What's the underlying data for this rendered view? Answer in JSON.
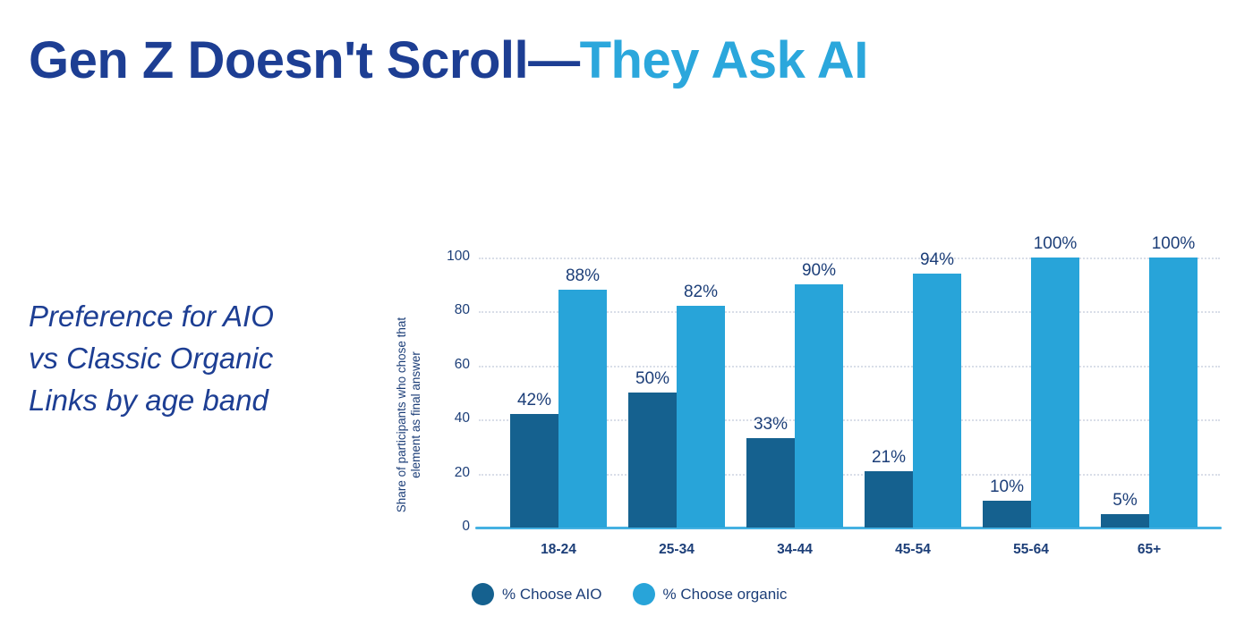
{
  "page": {
    "title": {
      "dark": "Gen Z Doesn't Scroll—",
      "accent": "They Ask AI"
    },
    "subtitle_lines": [
      "Preference for AIO",
      "vs Classic Organic",
      "Links by age band"
    ]
  },
  "colors": {
    "title_navy": "#1d3e93",
    "title_accent": "#2ba7dc",
    "chart_text": "#1c3e78",
    "aio_bar": "#15618f",
    "organic_bar": "#28a4d9",
    "axis_line": "#45b1e2",
    "gridline": "#d9dee8",
    "background": "#ffffff"
  },
  "chart_data": {
    "type": "bar",
    "title": "Preference for AIO vs Classic Organic Links by age band",
    "categories": [
      "18-24",
      "25-34",
      "34-44",
      "45-54",
      "55-64",
      "65+"
    ],
    "series": [
      {
        "name": "% Choose AIO",
        "color": "#15618f",
        "values": [
          42,
          50,
          33,
          21,
          10,
          5
        ]
      },
      {
        "name": "% Choose organic",
        "color": "#28a4d9",
        "values": [
          88,
          82,
          90,
          94,
          100,
          100
        ]
      }
    ],
    "value_labels": [
      [
        "42%",
        "50%",
        "33%",
        "21%",
        "10%",
        "5%"
      ],
      [
        "88%",
        "82%",
        "90%",
        "94%",
        "100%",
        "100%"
      ]
    ],
    "ylabel_lines": [
      "Share of participants who chose that",
      "element as final answer"
    ],
    "yticks": [
      0,
      20,
      40,
      60,
      80,
      100
    ],
    "ylim": [
      0,
      100
    ],
    "grid": "horizontal-dotted",
    "legend_position": "bottom-left",
    "legend": [
      "% Choose AIO",
      "% Choose organic"
    ]
  }
}
